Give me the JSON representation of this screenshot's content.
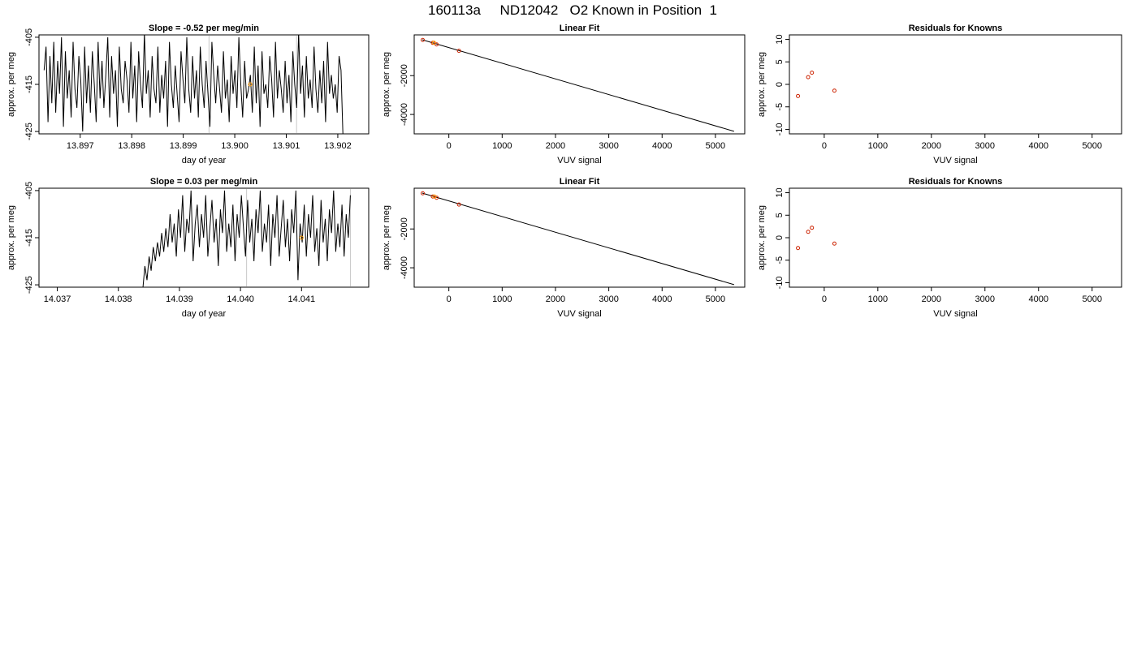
{
  "page_title": "160113a     ND12042   O2 Known in Position  1",
  "chart_data": [
    {
      "type": "line",
      "title": "Slope =  -0.52  per meg/min",
      "xlabel": "day of year",
      "ylabel": "approx. per meg",
      "xlim": [
        13.8962,
        13.9026
      ],
      "ylim": [
        -425.5,
        -404.5
      ],
      "x_ticks": [
        "13.897",
        "13.898",
        "13.899",
        "13.900",
        "13.901",
        "13.902"
      ],
      "y_ticks": [
        "-405",
        "-415",
        "-425"
      ],
      "x_start": 13.8963,
      "x_end": 13.9021,
      "series": [
        {
          "values": [
            -412,
            -407,
            -423,
            -409,
            -419,
            -406,
            -421,
            -410,
            -417,
            -405,
            -424,
            -408,
            -418,
            -412,
            -422,
            -406,
            -416,
            -420,
            -409,
            -414,
            -425,
            -407,
            -419,
            -411,
            -421,
            -408,
            -415,
            -423,
            -406,
            -418,
            -410,
            -420,
            -413,
            -405,
            -422,
            -409,
            -417,
            -412,
            -424,
            -407,
            -416,
            -419,
            -410,
            -414,
            -421,
            -406,
            -418,
            -411,
            -423,
            -408,
            -415,
            -420,
            -404,
            -417,
            -412,
            -422,
            -409,
            -416,
            -419,
            -407,
            -421,
            -413,
            -418,
            -410,
            -424,
            -406,
            -415,
            -420,
            -411,
            -417,
            -423,
            -408,
            -414,
            -419,
            -405,
            -416,
            -421,
            -409,
            -418,
            -412,
            -422,
            -407,
            -415,
            -420,
            -410,
            -417,
            -424,
            -406,
            -413,
            -419,
            -411,
            -416,
            -421,
            -408,
            -418,
            -414,
            -423,
            -409,
            -417,
            -412,
            -420,
            -405,
            -415,
            -422,
            -410,
            -418,
            -416,
            -413,
            -421,
            -407,
            -419,
            -411,
            -424,
            -408,
            -417,
            -415,
            -420,
            -409,
            -414,
            -422,
            -406,
            -418,
            -412,
            -416,
            -421,
            -410,
            -419,
            -413,
            -423,
            -408,
            -415,
            -420,
            -404,
            -417,
            -411,
            -422,
            -409,
            -418,
            -414,
            -420,
            -407,
            -416,
            -421,
            -412,
            -419,
            -410,
            -423,
            -406,
            -417,
            -413,
            -418,
            -415,
            -421,
            -409,
            -412,
            -426
          ]
        }
      ],
      "vlines": [
        13.8995,
        13.9012
      ],
      "highlight_point": {
        "x": 13.9003,
        "y": -415
      }
    },
    {
      "type": "scatter",
      "title": "Linear Fit",
      "xlabel": "VUV signal",
      "ylabel": "approx. per meg",
      "xlim": [
        -650,
        5550
      ],
      "ylim": [
        -5000,
        100
      ],
      "x_ticks": [
        "0",
        "1000",
        "2000",
        "3000",
        "4000",
        "5000"
      ],
      "y_ticks": [
        "-2000",
        "-4000"
      ],
      "fit_line": {
        "x": [
          -500,
          5350
        ],
        "y": [
          -150,
          -4870
        ]
      },
      "points": [
        {
          "x": -490,
          "y": -160
        },
        {
          "x": -300,
          "y": -310
        },
        {
          "x": -230,
          "y": -390
        },
        {
          "x": 190,
          "y": -720
        }
      ],
      "highlight_point": {
        "x": -280,
        "y": -300
      }
    },
    {
      "type": "scatter",
      "title": "Residuals for Knowns",
      "xlabel": "VUV signal",
      "ylabel": "approx. per meg",
      "xlim": [
        -650,
        5550
      ],
      "ylim": [
        -11,
        11
      ],
      "x_ticks": [
        "0",
        "1000",
        "2000",
        "3000",
        "4000",
        "5000"
      ],
      "y_ticks": [
        "10",
        "5",
        "0",
        "-5",
        "-10"
      ],
      "points": [
        {
          "x": -490,
          "y": -2.6
        },
        {
          "x": -300,
          "y": 1.6
        },
        {
          "x": -230,
          "y": 2.6
        },
        {
          "x": 190,
          "y": -1.4
        }
      ]
    },
    {
      "type": "line",
      "title": "Slope =  0.03  per meg/min",
      "xlabel": "day of year",
      "ylabel": "approx. per meg",
      "xlim": [
        14.0367,
        14.0421
      ],
      "ylim": [
        -425.5,
        -404.5
      ],
      "x_ticks": [
        "14.037",
        "14.038",
        "14.039",
        "14.040",
        "14.041"
      ],
      "y_ticks": [
        "-405",
        "-415",
        "-425"
      ],
      "x_start": 14.0384,
      "x_end": 14.0418,
      "series": [
        {
          "values": [
            -426,
            -421,
            -424,
            -419,
            -422,
            -417,
            -420,
            -416,
            -419,
            -414,
            -418,
            -413,
            -417,
            -410,
            -416,
            -412,
            -419,
            -409,
            -415,
            -406,
            -418,
            -411,
            -414,
            -405,
            -420,
            -412,
            -408,
            -417,
            -410,
            -415,
            -406,
            -419,
            -413,
            -407,
            -416,
            -411,
            -421,
            -409,
            -414,
            -405,
            -418,
            -412,
            -417,
            -408,
            -420,
            -410,
            -415,
            -406,
            -413,
            -419,
            -407,
            -416,
            -411,
            -420,
            -409,
            -414,
            -405,
            -418,
            -412,
            -416,
            -408,
            -421,
            -410,
            -415,
            -406,
            -419,
            -413,
            -407,
            -417,
            -411,
            -420,
            -409,
            -414,
            -405,
            -424,
            -412,
            -416,
            -408,
            -419,
            -410,
            -415,
            -406,
            -418,
            -413,
            -421,
            -407,
            -416,
            -411,
            -420,
            -409,
            -414,
            -405,
            -418,
            -412,
            -417,
            -408,
            -419,
            -410,
            -415,
            -406
          ]
        }
      ],
      "vlines": [
        14.0401,
        14.0418
      ],
      "highlight_point": {
        "x": 14.041,
        "y": -415
      }
    },
    {
      "type": "scatter",
      "title": "Linear Fit",
      "xlabel": "VUV signal",
      "ylabel": "approx. per meg",
      "xlim": [
        -650,
        5550
      ],
      "ylim": [
        -5000,
        100
      ],
      "x_ticks": [
        "0",
        "1000",
        "2000",
        "3000",
        "4000",
        "5000"
      ],
      "y_ticks": [
        "-2000",
        "-4000"
      ],
      "fit_line": {
        "x": [
          -500,
          5350
        ],
        "y": [
          -150,
          -4870
        ]
      },
      "points": [
        {
          "x": -490,
          "y": -160
        },
        {
          "x": -300,
          "y": -330
        },
        {
          "x": -230,
          "y": -390
        },
        {
          "x": 190,
          "y": -740
        }
      ],
      "highlight_point": {
        "x": -270,
        "y": -330
      }
    },
    {
      "type": "scatter",
      "title": "Residuals for Knowns",
      "xlabel": "VUV signal",
      "ylabel": "approx. per meg",
      "xlim": [
        -650,
        5550
      ],
      "ylim": [
        -11,
        11
      ],
      "x_ticks": [
        "0",
        "1000",
        "2000",
        "3000",
        "4000",
        "5000"
      ],
      "y_ticks": [
        "10",
        "5",
        "0",
        "-5",
        "-10"
      ],
      "points": [
        {
          "x": -490,
          "y": -2.3
        },
        {
          "x": -300,
          "y": 1.3
        },
        {
          "x": -230,
          "y": 2.2
        },
        {
          "x": 190,
          "y": -1.3
        }
      ]
    }
  ],
  "colors": {
    "line": "#000000",
    "point": "#cc2200",
    "highlight": "#ff9900",
    "vline": "#c8c8c8",
    "frame": "#000000"
  }
}
